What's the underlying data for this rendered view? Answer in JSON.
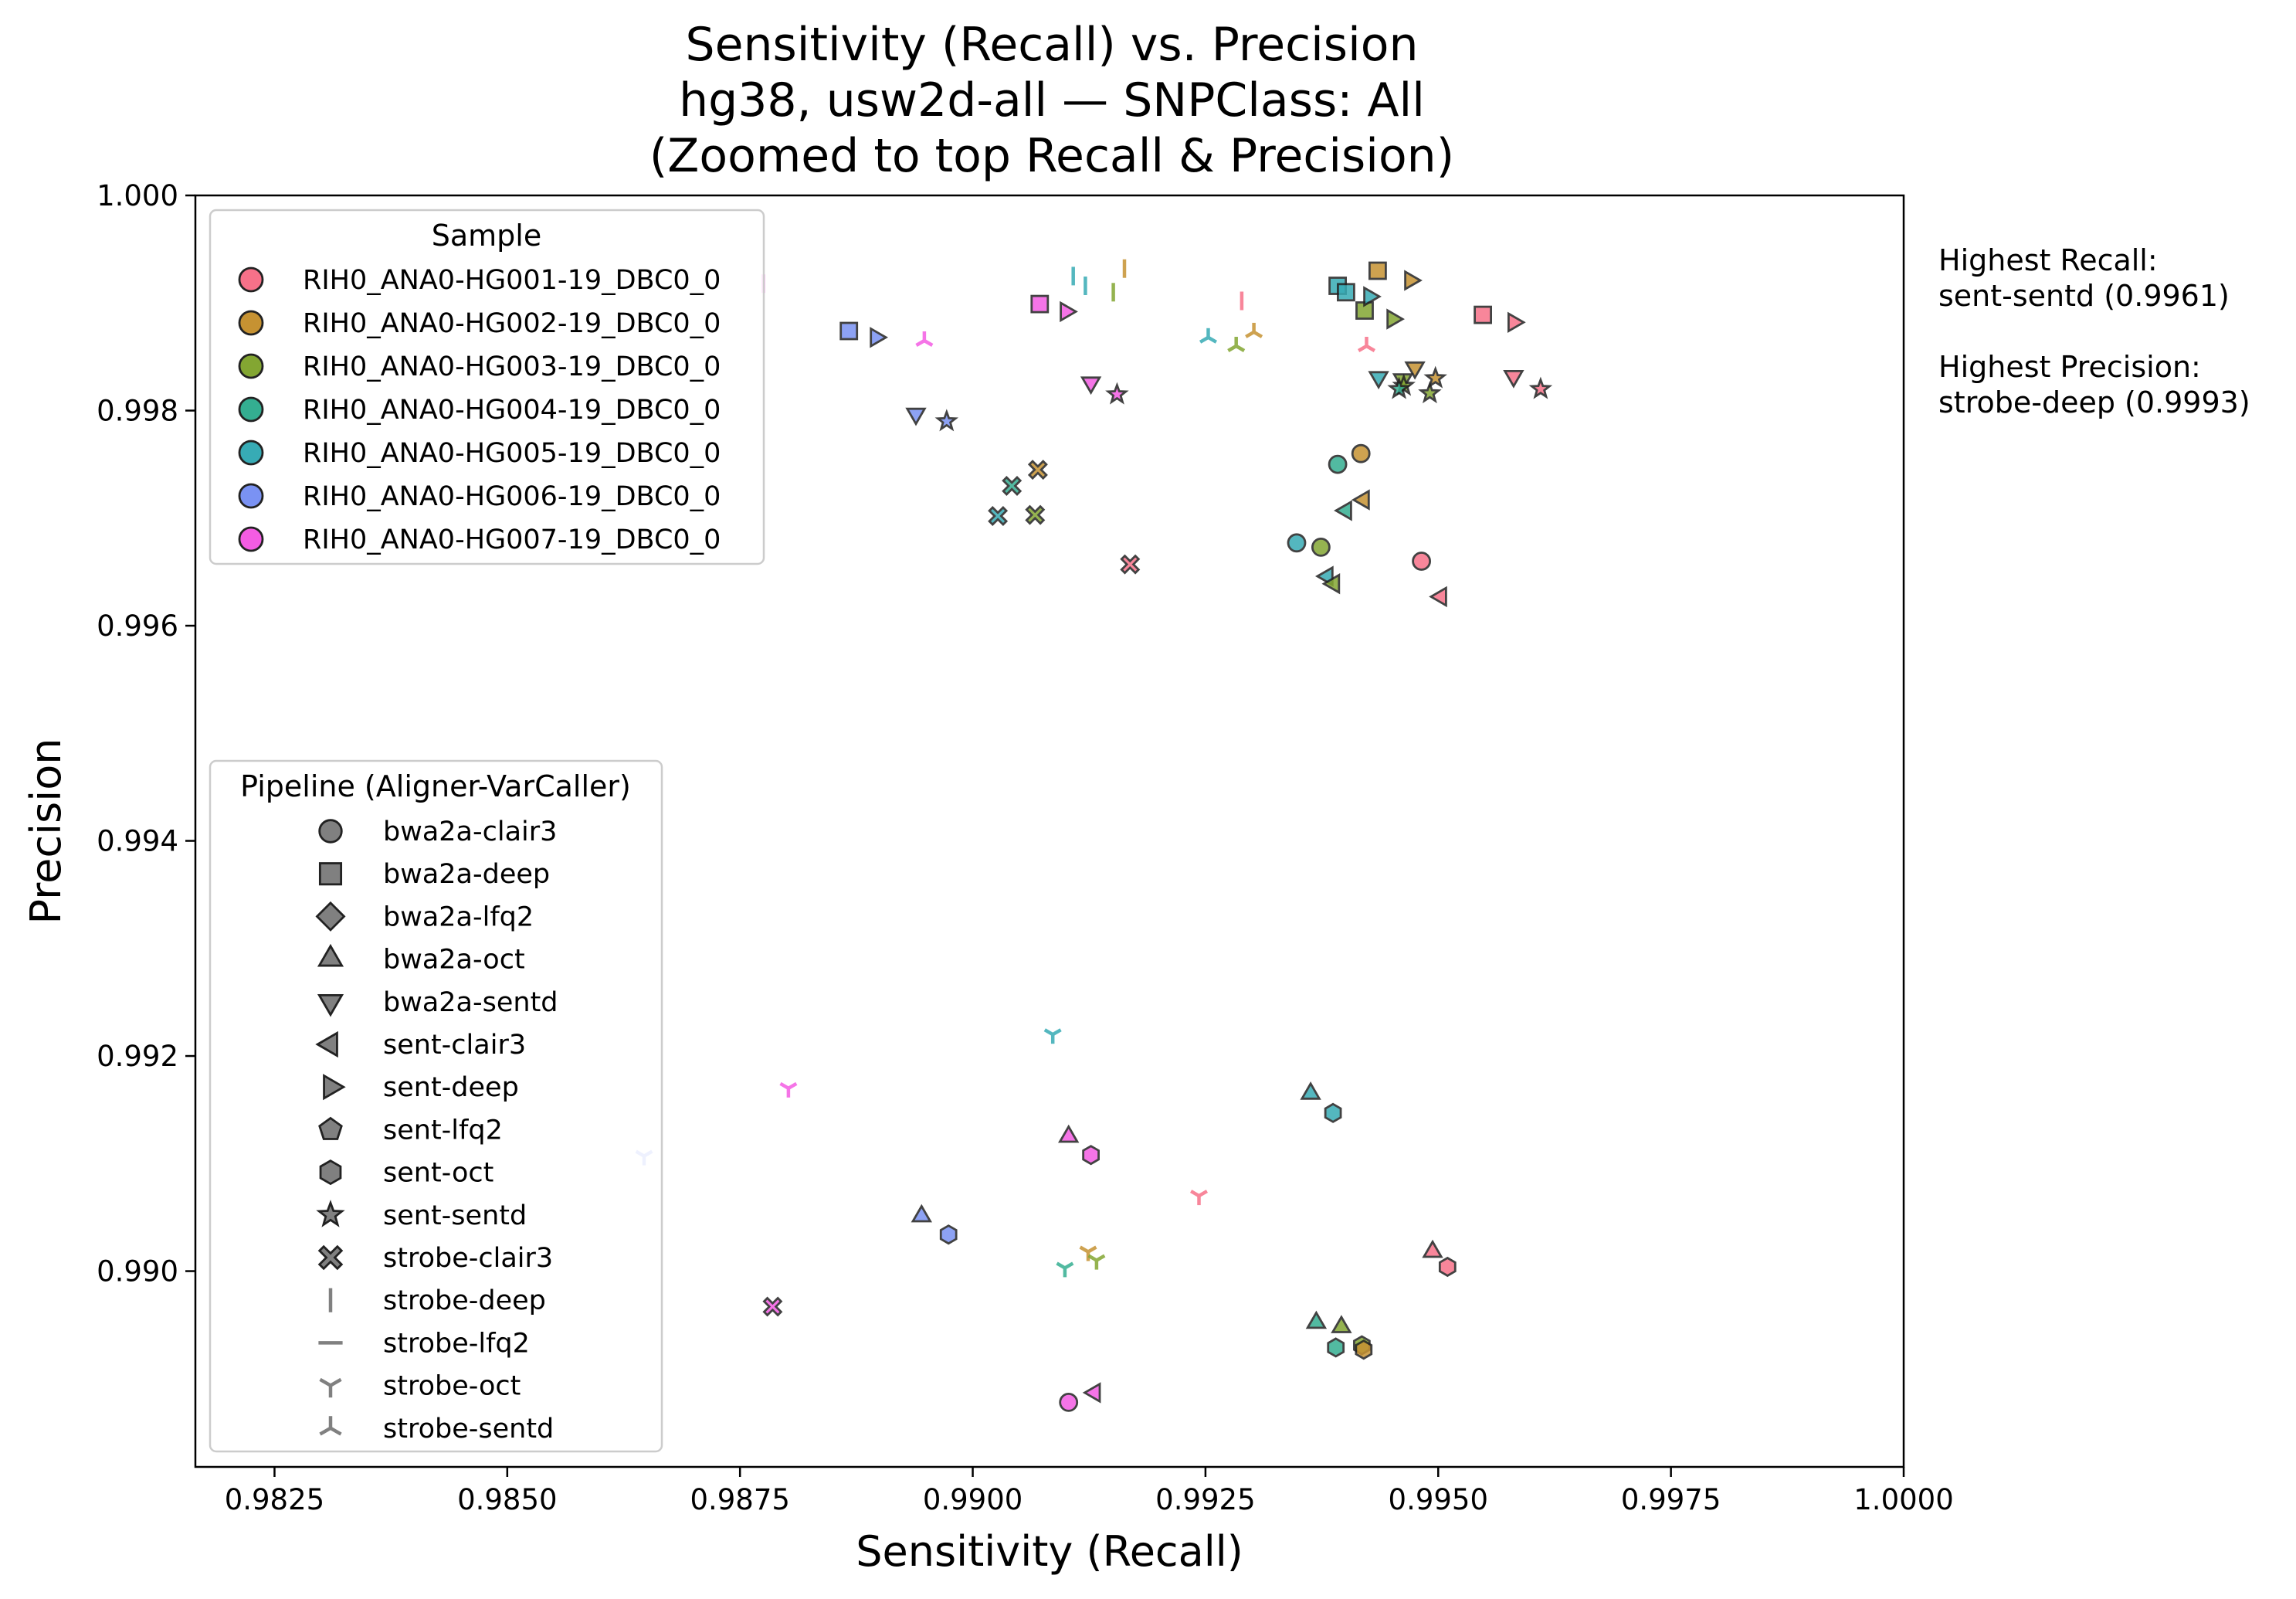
{
  "chart_data": {
    "type": "scatter",
    "title_lines": [
      "Sensitivity (Recall) vs. Precision",
      "hg38, usw2d-all — SNPClass: All",
      "(Zoomed to top Recall & Precision)"
    ],
    "xlabel": "Sensitivity (Recall)",
    "ylabel": "Precision",
    "xlim": [
      0.98165,
      1.0
    ],
    "ylim": [
      0.98818,
      1.0
    ],
    "x_ticks": [
      0.9825,
      0.985,
      0.9875,
      0.99,
      0.9925,
      0.995,
      0.9975,
      1.0
    ],
    "x_tick_labels": [
      "0.9825",
      "0.9850",
      "0.9875",
      "0.9900",
      "0.9925",
      "0.9950",
      "0.9975",
      "1.0000"
    ],
    "y_ticks": [
      0.99,
      0.992,
      0.994,
      0.996,
      0.998,
      1.0
    ],
    "y_tick_labels": [
      "0.990",
      "0.992",
      "0.994",
      "0.996",
      "0.998",
      "1.000"
    ],
    "grid": false,
    "annotations": [
      "Highest Recall:",
      "sent-sentd (0.9961)",
      "Highest Precision:",
      "strobe-deep (0.9993)"
    ],
    "legend_samples": {
      "title": "Sample",
      "placement": "upper-left",
      "items": [
        {
          "label": "RIH0_ANA0-HG001-19_DBC0_0",
          "color": "#f77189"
        },
        {
          "label": "RIH0_ANA0-HG002-19_DBC0_0",
          "color": "#c69232"
        },
        {
          "label": "RIH0_ANA0-HG003-19_DBC0_0",
          "color": "#83a632"
        },
        {
          "label": "RIH0_ANA0-HG004-19_DBC0_0",
          "color": "#34ae91"
        },
        {
          "label": "RIH0_ANA0-HG005-19_DBC0_0",
          "color": "#37abb5"
        },
        {
          "label": "RIH0_ANA0-HG006-19_DBC0_0",
          "color": "#7a92f3"
        },
        {
          "label": "RIH0_ANA0-HG007-19_DBC0_0",
          "color": "#f45ce3"
        }
      ]
    },
    "legend_pipelines": {
      "title": "Pipeline (Aligner-VarCaller)",
      "placement": "lower-left",
      "items": [
        {
          "label": "bwa2a-clair3",
          "marker": "circle"
        },
        {
          "label": "bwa2a-deep",
          "marker": "square"
        },
        {
          "label": "bwa2a-lfq2",
          "marker": "diamond"
        },
        {
          "label": "bwa2a-oct",
          "marker": "triangle-up"
        },
        {
          "label": "bwa2a-sentd",
          "marker": "triangle-down"
        },
        {
          "label": "sent-clair3",
          "marker": "triangle-left"
        },
        {
          "label": "sent-deep",
          "marker": "triangle-right"
        },
        {
          "label": "sent-lfq2",
          "marker": "pentagon"
        },
        {
          "label": "sent-oct",
          "marker": "hexagon"
        },
        {
          "label": "sent-sentd",
          "marker": "star"
        },
        {
          "label": "strobe-clair3",
          "marker": "x-filled"
        },
        {
          "label": "strobe-deep",
          "marker": "vline"
        },
        {
          "label": "strobe-lfq2",
          "marker": "hline"
        },
        {
          "label": "strobe-oct",
          "marker": "tri-down"
        },
        {
          "label": "strobe-sentd",
          "marker": "tri-up"
        }
      ]
    },
    "series": [
      {
        "sample": 0,
        "pipeline": "bwa2a-clair3",
        "x": 0.99482,
        "y": 0.9966
      },
      {
        "sample": 1,
        "pipeline": "bwa2a-clair3",
        "x": 0.99417,
        "y": 0.9976
      },
      {
        "sample": 3,
        "pipeline": "bwa2a-clair3",
        "x": 0.99392,
        "y": 0.9975
      },
      {
        "sample": 2,
        "pipeline": "bwa2a-clair3",
        "x": 0.99374,
        "y": 0.99673
      },
      {
        "sample": 4,
        "pipeline": "bwa2a-clair3",
        "x": 0.99348,
        "y": 0.99677
      },
      {
        "sample": 6,
        "pipeline": "bwa2a-clair3",
        "x": 0.99103,
        "y": 0.98878
      },
      {
        "sample": 1,
        "pipeline": "bwa2a-deep",
        "x": 0.99435,
        "y": 0.9993
      },
      {
        "sample": 4,
        "pipeline": "bwa2a-deep",
        "x": 0.99392,
        "y": 0.99916
      },
      {
        "sample": 4,
        "pipeline": "bwa2a-deep",
        "x": 0.99401,
        "y": 0.9991
      },
      {
        "sample": 2,
        "pipeline": "bwa2a-deep",
        "x": 0.99421,
        "y": 0.99893
      },
      {
        "sample": 0,
        "pipeline": "bwa2a-deep",
        "x": 0.99548,
        "y": 0.99889
      },
      {
        "sample": 6,
        "pipeline": "bwa2a-deep",
        "x": 0.99072,
        "y": 0.99899
      },
      {
        "sample": 5,
        "pipeline": "bwa2a-deep",
        "x": 0.98867,
        "y": 0.99874
      },
      {
        "sample": 3,
        "pipeline": "bwa2a-oct",
        "x": 0.99369,
        "y": 0.98952
      },
      {
        "sample": 2,
        "pipeline": "bwa2a-oct",
        "x": 0.99396,
        "y": 0.98948
      },
      {
        "sample": 4,
        "pipeline": "bwa2a-oct",
        "x": 0.99363,
        "y": 0.99165
      },
      {
        "sample": 0,
        "pipeline": "bwa2a-oct",
        "x": 0.99494,
        "y": 0.99018
      },
      {
        "sample": 5,
        "pipeline": "bwa2a-oct",
        "x": 0.98945,
        "y": 0.99051
      },
      {
        "sample": 6,
        "pipeline": "bwa2a-oct",
        "x": 0.99103,
        "y": 0.99125
      },
      {
        "sample": 5,
        "pipeline": "bwa2a-sentd",
        "x": 0.98939,
        "y": 0.99797
      },
      {
        "sample": 6,
        "pipeline": "bwa2a-sentd",
        "x": 0.99127,
        "y": 0.99826
      },
      {
        "sample": 4,
        "pipeline": "bwa2a-sentd",
        "x": 0.99436,
        "y": 0.99831
      },
      {
        "sample": 2,
        "pipeline": "bwa2a-sentd",
        "x": 0.99462,
        "y": 0.99829
      },
      {
        "sample": 1,
        "pipeline": "bwa2a-sentd",
        "x": 0.99475,
        "y": 0.9984
      },
      {
        "sample": 0,
        "pipeline": "bwa2a-sentd",
        "x": 0.99581,
        "y": 0.99832
      },
      {
        "sample": 1,
        "pipeline": "sent-clair3",
        "x": 0.9942,
        "y": 0.99717
      },
      {
        "sample": 3,
        "pipeline": "sent-clair3",
        "x": 0.99401,
        "y": 0.99707
      },
      {
        "sample": 4,
        "pipeline": "sent-clair3",
        "x": 0.99381,
        "y": 0.99646
      },
      {
        "sample": 2,
        "pipeline": "sent-clair3",
        "x": 0.99388,
        "y": 0.99639
      },
      {
        "sample": 0,
        "pipeline": "sent-clair3",
        "x": 0.99503,
        "y": 0.99627
      },
      {
        "sample": 6,
        "pipeline": "sent-clair3",
        "x": 0.99131,
        "y": 0.98887
      },
      {
        "sample": 1,
        "pipeline": "sent-deep",
        "x": 0.9947,
        "y": 0.99921
      },
      {
        "sample": 4,
        "pipeline": "sent-deep",
        "x": 0.99426,
        "y": 0.99906
      },
      {
        "sample": 2,
        "pipeline": "sent-deep",
        "x": 0.99451,
        "y": 0.99885
      },
      {
        "sample": 0,
        "pipeline": "sent-deep",
        "x": 0.99581,
        "y": 0.99882
      },
      {
        "sample": 6,
        "pipeline": "sent-deep",
        "x": 0.991,
        "y": 0.99892
      },
      {
        "sample": 5,
        "pipeline": "sent-deep",
        "x": 0.98896,
        "y": 0.99868
      },
      {
        "sample": 4,
        "pipeline": "sent-oct",
        "x": 0.99387,
        "y": 0.99147
      },
      {
        "sample": 6,
        "pipeline": "sent-oct",
        "x": 0.99127,
        "y": 0.99108
      },
      {
        "sample": 5,
        "pipeline": "sent-oct",
        "x": 0.98974,
        "y": 0.99034
      },
      {
        "sample": 0,
        "pipeline": "sent-oct",
        "x": 0.9951,
        "y": 0.99004
      },
      {
        "sample": 3,
        "pipeline": "sent-oct",
        "x": 0.9939,
        "y": 0.98929
      },
      {
        "sample": 2,
        "pipeline": "sent-oct",
        "x": 0.99418,
        "y": 0.98931
      },
      {
        "sample": 1,
        "pipeline": "sent-oct",
        "x": 0.9942,
        "y": 0.98927
      },
      {
        "sample": 6,
        "pipeline": "sent-sentd",
        "x": 0.99155,
        "y": 0.99815
      },
      {
        "sample": 5,
        "pipeline": "sent-sentd",
        "x": 0.98972,
        "y": 0.9979
      },
      {
        "sample": 2,
        "pipeline": "sent-sentd",
        "x": 0.99463,
        "y": 0.99823
      },
      {
        "sample": 3,
        "pipeline": "sent-sentd",
        "x": 0.99458,
        "y": 0.9982
      },
      {
        "sample": 2,
        "pipeline": "sent-sentd",
        "x": 0.99491,
        "y": 0.99816
      },
      {
        "sample": 1,
        "pipeline": "sent-sentd",
        "x": 0.99497,
        "y": 0.9983
      },
      {
        "sample": 0,
        "pipeline": "sent-sentd",
        "x": 0.9961,
        "y": 0.9982
      },
      {
        "sample": 1,
        "pipeline": "strobe-clair3",
        "x": 0.9907,
        "y": 0.99745
      },
      {
        "sample": 3,
        "pipeline": "strobe-clair3",
        "x": 0.99042,
        "y": 0.9973
      },
      {
        "sample": 4,
        "pipeline": "strobe-clair3",
        "x": 0.99027,
        "y": 0.99702
      },
      {
        "sample": 2,
        "pipeline": "strobe-clair3",
        "x": 0.99067,
        "y": 0.99703
      },
      {
        "sample": 0,
        "pipeline": "strobe-clair3",
        "x": 0.99169,
        "y": 0.99657
      },
      {
        "sample": 6,
        "pipeline": "strobe-clair3",
        "x": 0.98785,
        "y": 0.98967
      },
      {
        "sample": 6,
        "pipeline": "strobe-deep",
        "x": 0.98775,
        "y": 0.99918
      },
      {
        "sample": 4,
        "pipeline": "strobe-deep",
        "x": 0.99108,
        "y": 0.99925
      },
      {
        "sample": 4,
        "pipeline": "strobe-deep",
        "x": 0.99121,
        "y": 0.99916
      },
      {
        "sample": 2,
        "pipeline": "strobe-deep",
        "x": 0.99151,
        "y": 0.9991
      },
      {
        "sample": 1,
        "pipeline": "strobe-deep",
        "x": 0.99163,
        "y": 0.99932
      },
      {
        "sample": 0,
        "pipeline": "strobe-deep",
        "x": 0.99289,
        "y": 0.99902
      },
      {
        "sample": 4,
        "pipeline": "strobe-oct",
        "x": 0.99086,
        "y": 0.9922
      },
      {
        "sample": 6,
        "pipeline": "strobe-oct",
        "x": 0.98802,
        "y": 0.9917
      },
      {
        "sample": 5,
        "pipeline": "strobe-oct",
        "x": 0.98647,
        "y": 0.99107
      },
      {
        "sample": 0,
        "pipeline": "strobe-oct",
        "x": 0.99243,
        "y": 0.9907
      },
      {
        "sample": 1,
        "pipeline": "strobe-oct",
        "x": 0.99124,
        "y": 0.99018
      },
      {
        "sample": 2,
        "pipeline": "strobe-oct",
        "x": 0.99133,
        "y": 0.9901
      },
      {
        "sample": 3,
        "pipeline": "strobe-oct",
        "x": 0.99099,
        "y": 0.99003
      },
      {
        "sample": 6,
        "pipeline": "strobe-sentd",
        "x": 0.98948,
        "y": 0.99865
      },
      {
        "sample": 4,
        "pipeline": "strobe-sentd",
        "x": 0.99253,
        "y": 0.99868
      },
      {
        "sample": 2,
        "pipeline": "strobe-sentd",
        "x": 0.99283,
        "y": 0.9986
      },
      {
        "sample": 1,
        "pipeline": "strobe-sentd",
        "x": 0.99302,
        "y": 0.99873
      },
      {
        "sample": 0,
        "pipeline": "strobe-sentd",
        "x": 0.99423,
        "y": 0.9986
      }
    ]
  }
}
